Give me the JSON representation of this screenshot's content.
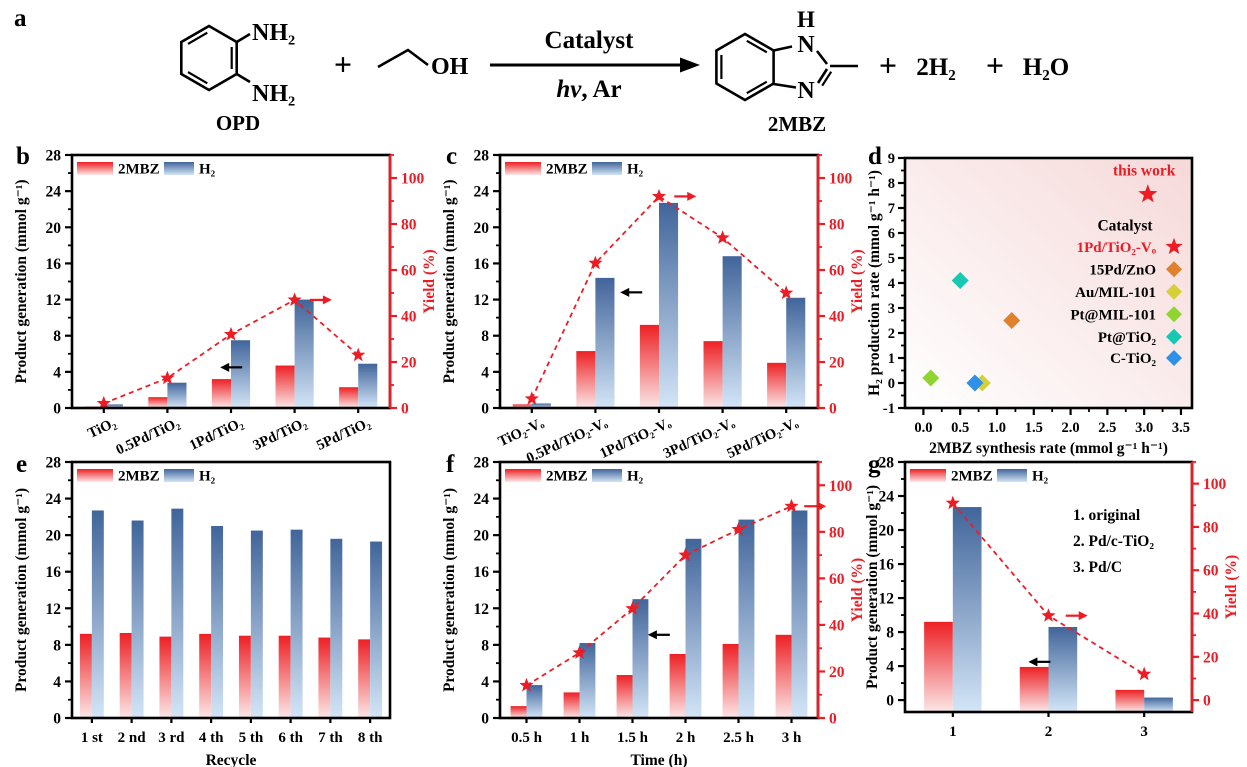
{
  "panel_letters": {
    "a": "a",
    "b": "b",
    "c": "c",
    "d": "d",
    "e": "e",
    "f": "f",
    "g": "g"
  },
  "scheme": {
    "nh2_top": "NH₂",
    "nh2_bottom": "NH₂",
    "opd": "OPD",
    "plus_1": "+",
    "oh": "OH",
    "catalyst": "Catalyst",
    "hv": "hv",
    "ar": ", Ar",
    "h": "H",
    "n_top": "N",
    "n_bottom": "N",
    "mbz": "2MBZ",
    "plus_2": "+",
    "h2": "2H₂",
    "plus_3": "+",
    "h2o": "H₂O"
  },
  "colors": {
    "accent_red": "#ed1c24",
    "bar_red_top": "#ed2024",
    "bar_red_bottom": "#fbe7e7",
    "bar_blue_top": "#41659a",
    "bar_blue_bottom": "#d3e5f7",
    "scatter_bg_from": "#ffffff",
    "scatter_bg_to": "#f6d9d9"
  },
  "chart_data": [
    {
      "panel": "b",
      "type": "bar",
      "categories": [
        "TiO₂",
        "0.5Pd/TiO₂",
        "1Pd/TiO₂",
        "3Pd/TiO₂",
        "5Pd/TiO₂"
      ],
      "series": [
        {
          "name": "2MBZ",
          "values": [
            0.15,
            1.2,
            3.2,
            4.7,
            2.3
          ]
        },
        {
          "name": "H₂",
          "values": [
            0.4,
            2.8,
            7.5,
            12.0,
            4.9
          ]
        }
      ],
      "yield_series": {
        "name": "Yield",
        "values": [
          2,
          13,
          32,
          47,
          23
        ]
      },
      "ylabel": "Product generation (mmol g⁻¹)",
      "y2label": "Yield (%)",
      "xlabel": "",
      "ylim": [
        0,
        28
      ],
      "ytick": 4,
      "y2lim": [
        0,
        110
      ],
      "y2tick": 20,
      "legend": [
        "2MBZ",
        "H₂"
      ],
      "annotations": {
        "left_arrow": {
          "cat": 2.33,
          "value": 4.5
        },
        "right_arrow": {
          "cat": 3.74,
          "value2": 47
        }
      }
    },
    {
      "panel": "c",
      "type": "bar",
      "categories": [
        "TiO₂-Vₒ",
        "0.5Pd/TiO₂-Vₒ",
        "1Pd/TiO₂-Vₒ",
        "3Pd/TiO₂-Vₒ",
        "5Pd/TiO₂-Vₒ"
      ],
      "series": [
        {
          "name": "2MBZ",
          "values": [
            0.4,
            6.3,
            9.2,
            7.4,
            5.0
          ]
        },
        {
          "name": "H₂",
          "values": [
            0.5,
            14.4,
            22.7,
            16.8,
            12.2
          ]
        }
      ],
      "yield_series": {
        "name": "Yield",
        "values": [
          4,
          63,
          92,
          74,
          50
        ]
      },
      "ylabel": "Product generation (mmol g⁻¹)",
      "y2label": "Yield (%)",
      "xlabel": "",
      "ylim": [
        0,
        28
      ],
      "ytick": 4,
      "y2lim": [
        0,
        110
      ],
      "y2tick": 20,
      "legend": [
        "2MBZ",
        "H₂"
      ],
      "annotations": {
        "left_arrow": {
          "cat": 1.89,
          "value": 12.8
        },
        "right_arrow": {
          "cat": 2.74,
          "value2": 92
        }
      }
    },
    {
      "panel": "d",
      "type": "scatter",
      "xlabel": "2MBZ synthesis rate (mmol g⁻¹ h⁻¹)",
      "ylabel": "H₂ production rate (mmol g⁻¹ h⁻¹)",
      "xlim": [
        -0.25,
        3.65
      ],
      "xticks": [
        0.0,
        0.5,
        1.0,
        1.5,
        2.0,
        2.5,
        3.0,
        3.5
      ],
      "ylim": [
        -1,
        9
      ],
      "ytick": 1,
      "highlight": {
        "label": "this work",
        "x": 3.05,
        "y": 7.55
      },
      "legend_title": "Catalyst",
      "points": [
        {
          "name": "1Pd/TiO₂-Vₒ",
          "x": 3.05,
          "y": 7.55,
          "marker": "star",
          "color": "#ed1c24"
        },
        {
          "name": "15Pd/ZnO",
          "x": 1.2,
          "y": 2.5,
          "marker": "diamond",
          "color": "#e0812c"
        },
        {
          "name": "Au/MIL-101",
          "x": 0.8,
          "y": 0.0,
          "marker": "diamond",
          "color": "#d6cf3a"
        },
        {
          "name": "Pt@MIL-101",
          "x": 0.1,
          "y": 0.2,
          "marker": "diamond",
          "color": "#90d42f"
        },
        {
          "name": "Pt@TiO₂",
          "x": 0.5,
          "y": 4.1,
          "marker": "diamond",
          "color": "#17c9b2"
        },
        {
          "name": "C-TiO₂",
          "x": 0.7,
          "y": 0.0,
          "marker": "diamond",
          "color": "#2f90e8"
        }
      ]
    },
    {
      "panel": "e",
      "type": "bar",
      "categories": [
        "1 st",
        "2 nd",
        "3 rd",
        "4 th",
        "5 th",
        "6 th",
        "7 th",
        "8 th"
      ],
      "series": [
        {
          "name": "2MBZ",
          "values": [
            9.2,
            9.3,
            8.9,
            9.2,
            9.0,
            9.0,
            8.8,
            8.6
          ]
        },
        {
          "name": "H₂",
          "values": [
            22.7,
            21.6,
            22.9,
            21.0,
            20.5,
            20.6,
            19.6,
            19.3
          ]
        }
      ],
      "ylabel": "Product generation (mmol g⁻¹)",
      "xlabel": "Recycle",
      "ylim": [
        0,
        28
      ],
      "ytick": 4,
      "legend": [
        "2MBZ",
        "H₂"
      ]
    },
    {
      "panel": "f",
      "type": "bar",
      "categories": [
        "0.5 h",
        "1 h",
        "1.5 h",
        "2 h",
        "2.5 h",
        "3 h"
      ],
      "series": [
        {
          "name": "2MBZ",
          "values": [
            1.3,
            2.8,
            4.7,
            7.0,
            8.1,
            9.1
          ]
        },
        {
          "name": "H₂",
          "values": [
            3.6,
            8.2,
            13.0,
            19.6,
            21.7,
            22.7
          ]
        }
      ],
      "yield_series": {
        "name": "Yield",
        "values": [
          14,
          28,
          47,
          70,
          81,
          91
        ]
      },
      "ylabel": "Product generation (mmol g⁻¹)",
      "y2label": "Yield (%)",
      "xlabel": "Time (h)",
      "ylim": [
        0,
        28
      ],
      "ytick": 4,
      "y2lim": [
        0,
        110
      ],
      "y2tick": 20,
      "legend": [
        "2MBZ",
        "H₂"
      ],
      "annotations": {
        "left_arrow": {
          "cat": 2.79,
          "value": 9.1
        },
        "right_arrow": {
          "cat": 5.74,
          "value2": 91
        }
      }
    },
    {
      "panel": "g",
      "type": "bar",
      "categories": [
        "1",
        "2",
        "3"
      ],
      "series": [
        {
          "name": "2MBZ",
          "values": [
            9.2,
            3.9,
            1.2
          ]
        },
        {
          "name": "H₂",
          "values": [
            22.7,
            8.6,
            0.3
          ]
        }
      ],
      "yield_series": {
        "name": "Yield",
        "values": [
          91,
          39,
          12
        ]
      },
      "ylabel": "Product generation (mmol g⁻¹)",
      "y2label": "Yield (%)",
      "xlabel": "",
      "ylim": [
        -1.4,
        28
      ],
      "ytick": 4,
      "y2lim": [
        -5.5,
        110
      ],
      "y2tick": 20,
      "legend": [
        "2MBZ",
        "H₂"
      ],
      "inset_lines": [
        "1. original",
        "2. Pd/c-TiO₂",
        "3. Pd/C"
      ],
      "annotations": {
        "left_arrow": {
          "cat": 1.29,
          "value": 4.5
        },
        "right_arrow": {
          "cat": 1.68,
          "value2": 39
        }
      }
    }
  ]
}
